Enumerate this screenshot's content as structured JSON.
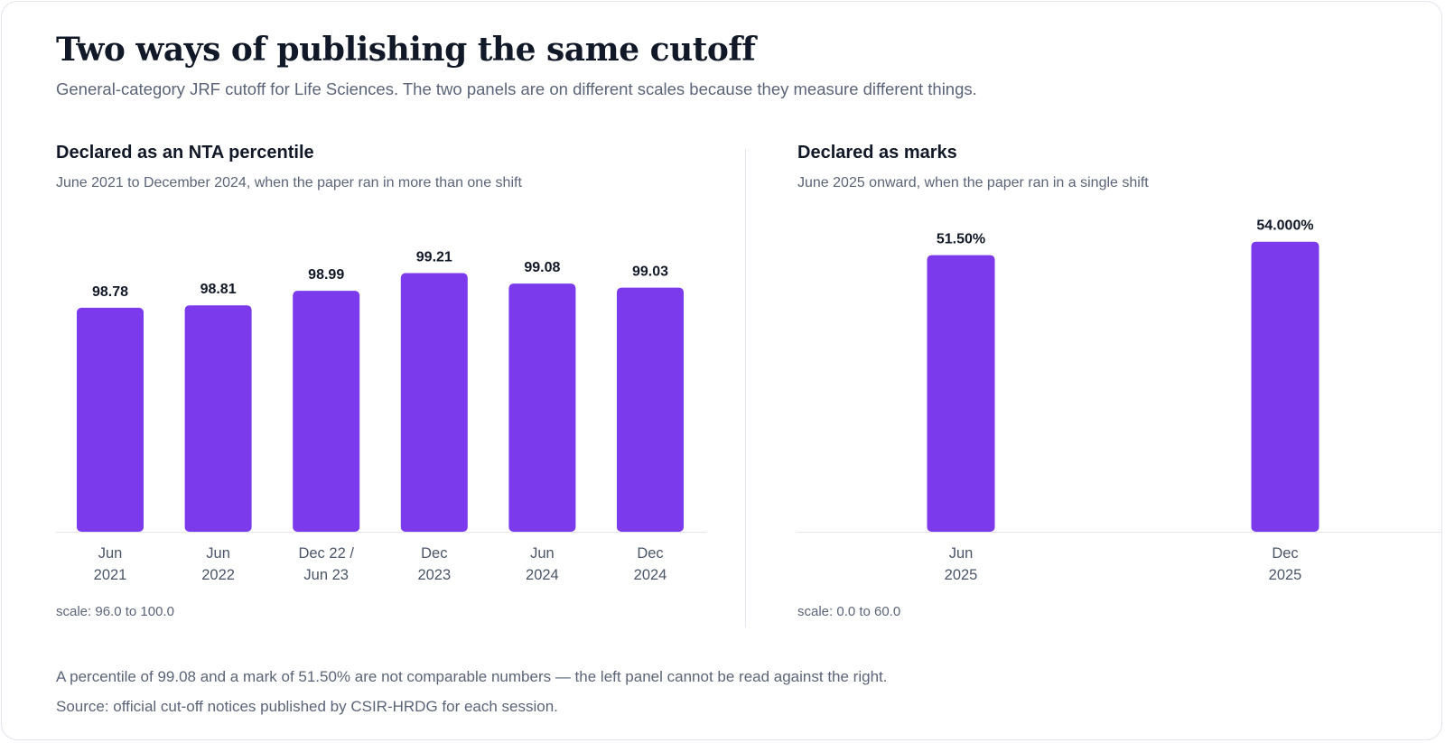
{
  "header": {
    "title": "Two ways of publishing the same cutoff",
    "subtitle": "General-category JRF cutoff for Life Sciences. The two panels are on different scales because they measure different things."
  },
  "colors": {
    "bar": "#7c3aed",
    "axis": "#e2e5ec"
  },
  "chart_data": [
    {
      "type": "bar",
      "title": "Declared as an NTA percentile",
      "subtitle": "June 2021 to December 2024, when the paper ran in more than one shift",
      "categories": [
        [
          "Jun",
          "2021"
        ],
        [
          "Jun",
          "2022"
        ],
        [
          "Dec 22 /",
          "Jun 23"
        ],
        [
          "Dec",
          "2023"
        ],
        [
          "Jun",
          "2024"
        ],
        [
          "Dec",
          "2024"
        ]
      ],
      "values": [
        98.78,
        98.81,
        98.99,
        99.21,
        99.08,
        99.03
      ],
      "value_labels": [
        "98.78",
        "98.81",
        "98.99",
        "99.21",
        "99.08",
        "99.03"
      ],
      "ylim": [
        96.0,
        100.0
      ],
      "scale_note": "scale: 96.0 to 100.0",
      "grid": false
    },
    {
      "type": "bar",
      "title": "Declared as marks",
      "subtitle": "June 2025 onward, when the paper ran in a single shift",
      "categories": [
        [
          "Jun",
          "2025"
        ],
        [
          "Dec",
          "2025"
        ]
      ],
      "values": [
        51.5,
        54.0
      ],
      "value_labels": [
        "51.50%",
        "54.000%"
      ],
      "ylim": [
        0.0,
        60.0
      ],
      "scale_note": "scale: 0.0 to 60.0",
      "grid": false
    }
  ],
  "footer": {
    "note": "A percentile of 99.08 and a mark of 51.50% are not comparable numbers — the left panel cannot be read against the right.",
    "source": "Source: official cut-off notices published by CSIR-HRDG for each session."
  }
}
